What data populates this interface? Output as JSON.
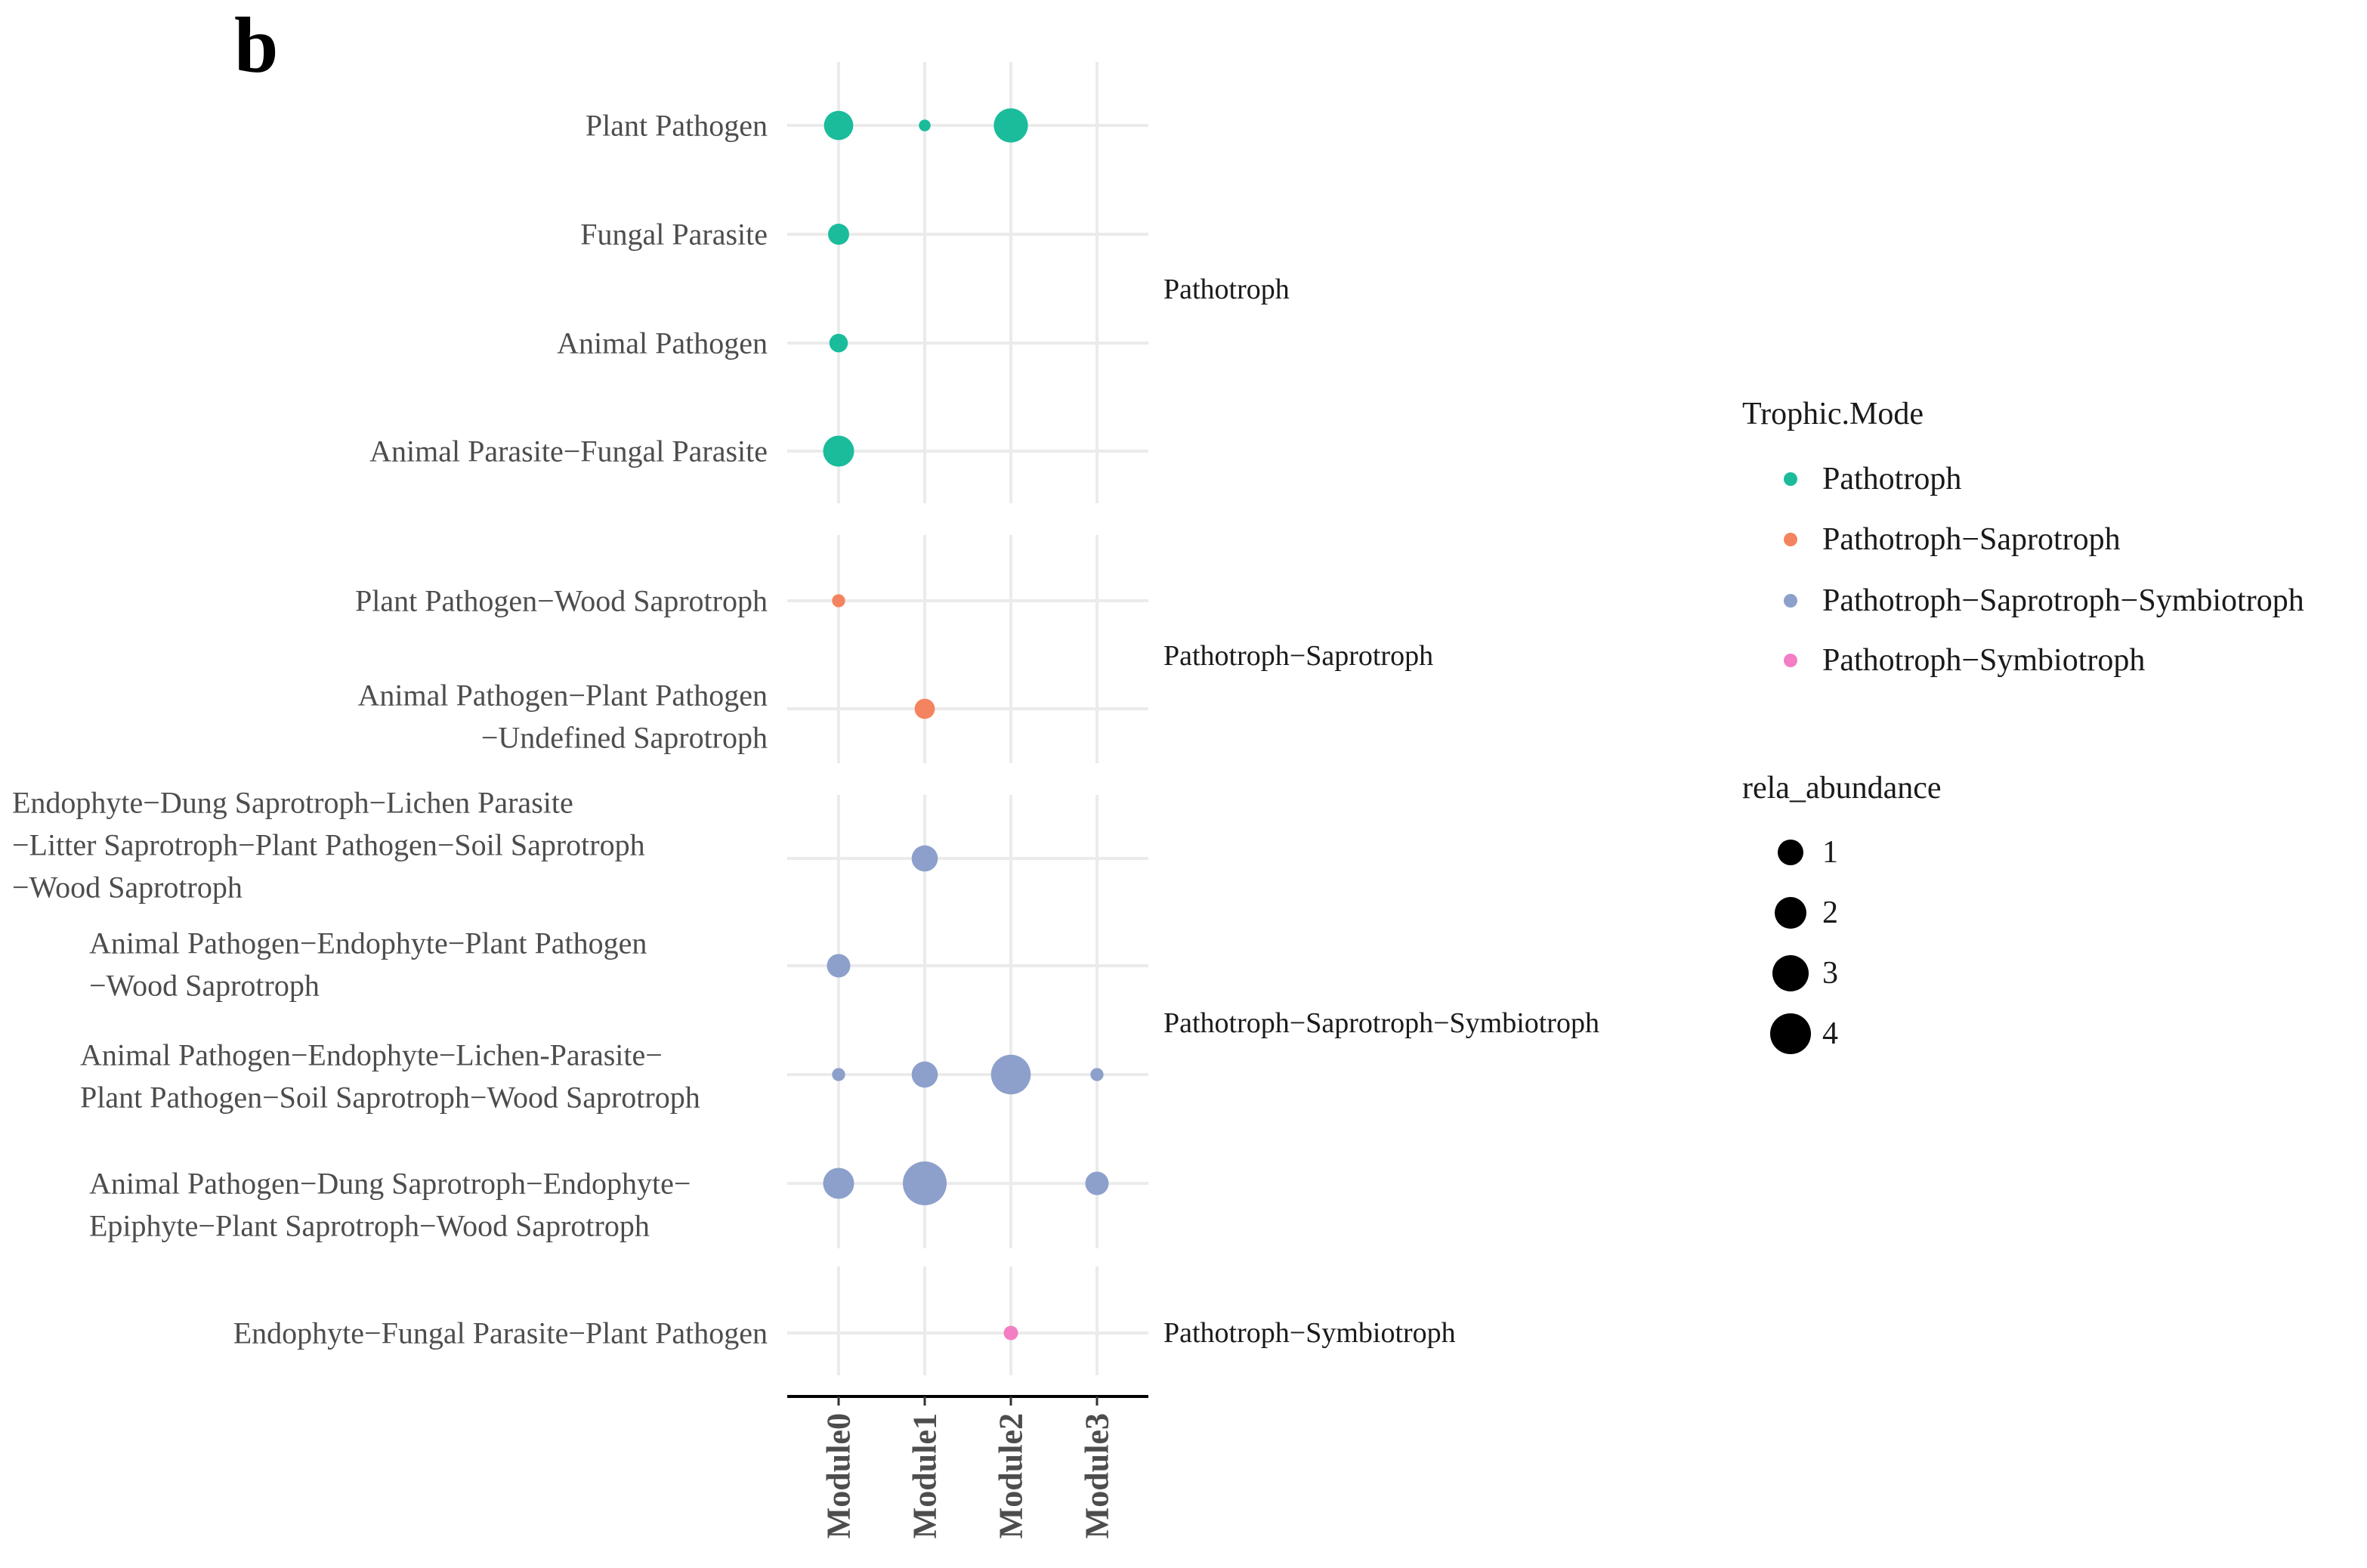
{
  "panel_label": "b",
  "chart_data": {
    "type": "scatter",
    "subtype": "faceted bubble chart",
    "x_categories": [
      "Module0",
      "Module1",
      "Module2",
      "Module3"
    ],
    "facets": [
      {
        "name": "Pathotroph",
        "color": "#1ABC9C",
        "rows": [
          {
            "label": [
              "Plant Pathogen"
            ],
            "values": [
              2.5,
              0.4,
              3.4,
              null
            ]
          },
          {
            "label": [
              "Fungal Parasite"
            ],
            "values": [
              1.3,
              null,
              null,
              null
            ]
          },
          {
            "label": [
              "Animal Pathogen"
            ],
            "values": [
              1.0,
              null,
              null,
              null
            ]
          },
          {
            "label": [
              "Animal Parasite−Fungal Parasite"
            ],
            "values": [
              2.8,
              null,
              null,
              null
            ]
          }
        ]
      },
      {
        "name": "Pathotroph−Saprotroph",
        "color": "#F4845F",
        "rows": [
          {
            "label": [
              "Plant Pathogen−Wood Saprotroph"
            ],
            "values": [
              0.5,
              null,
              null,
              null
            ]
          },
          {
            "label": [
              "Animal Pathogen−Plant Pathogen",
              "−Undefined Saprotroph"
            ],
            "values": [
              null,
              1.2,
              null,
              null
            ]
          }
        ]
      },
      {
        "name": "Pathotroph−Saprotroph−Symbiotroph",
        "color": "#8DA0CB",
        "rows": [
          {
            "label": [
              "Endophyte−Dung Saprotroph−Lichen Parasite",
              "−Litter Saprotroph−Plant Pathogen−Soil Saprotroph",
              "−Wood Saprotroph"
            ],
            "values": [
              null,
              2.0,
              null,
              null
            ]
          },
          {
            "label": [
              "Animal Pathogen−Endophyte−Plant Pathogen",
              "−Wood Saprotroph"
            ],
            "values": [
              1.6,
              null,
              null,
              null
            ]
          },
          {
            "label": [
              "Animal Pathogen−Endophyte−Lichen-Parasite−",
              "Plant Pathogen−Soil Saprotroph−Wood Saprotroph"
            ],
            "values": [
              0.5,
              2.0,
              4.6,
              0.5
            ]
          },
          {
            "label": [
              "Animal Pathogen−Dung Saprotroph−Endophyte−",
              "Epiphyte−Plant Saprotroph−Wood Saprotroph"
            ],
            "values": [
              2.8,
              5.6,
              null,
              1.6
            ]
          }
        ]
      },
      {
        "name": "Pathotroph−Symbiotroph",
        "color": "#F37EC4",
        "rows": [
          {
            "label": [
              "Endophyte−Fungal Parasite−Plant Pathogen"
            ],
            "values": [
              null,
              null,
              0.6,
              null
            ]
          }
        ]
      }
    ],
    "legend_color": {
      "title": "Trophic.Mode",
      "entries": [
        {
          "label": "Pathotroph",
          "color": "#1ABC9C"
        },
        {
          "label": "Pathotroph−Saprotroph",
          "color": "#F4845F"
        },
        {
          "label": "Pathotroph−Saprotroph−Symbiotroph",
          "color": "#8DA0CB"
        },
        {
          "label": "Pathotroph−Symbiotroph",
          "color": "#F37EC4"
        }
      ]
    },
    "legend_size": {
      "title": "rela_abundance",
      "entries": [
        {
          "label": "1",
          "value": 1
        },
        {
          "label": "2",
          "value": 2
        },
        {
          "label": "3",
          "value": 3
        },
        {
          "label": "4",
          "value": 4
        }
      ]
    },
    "size_range": [
      0,
      5.6
    ],
    "grid": true,
    "legend_position": "right",
    "x_tick_orientation": "vertical"
  }
}
